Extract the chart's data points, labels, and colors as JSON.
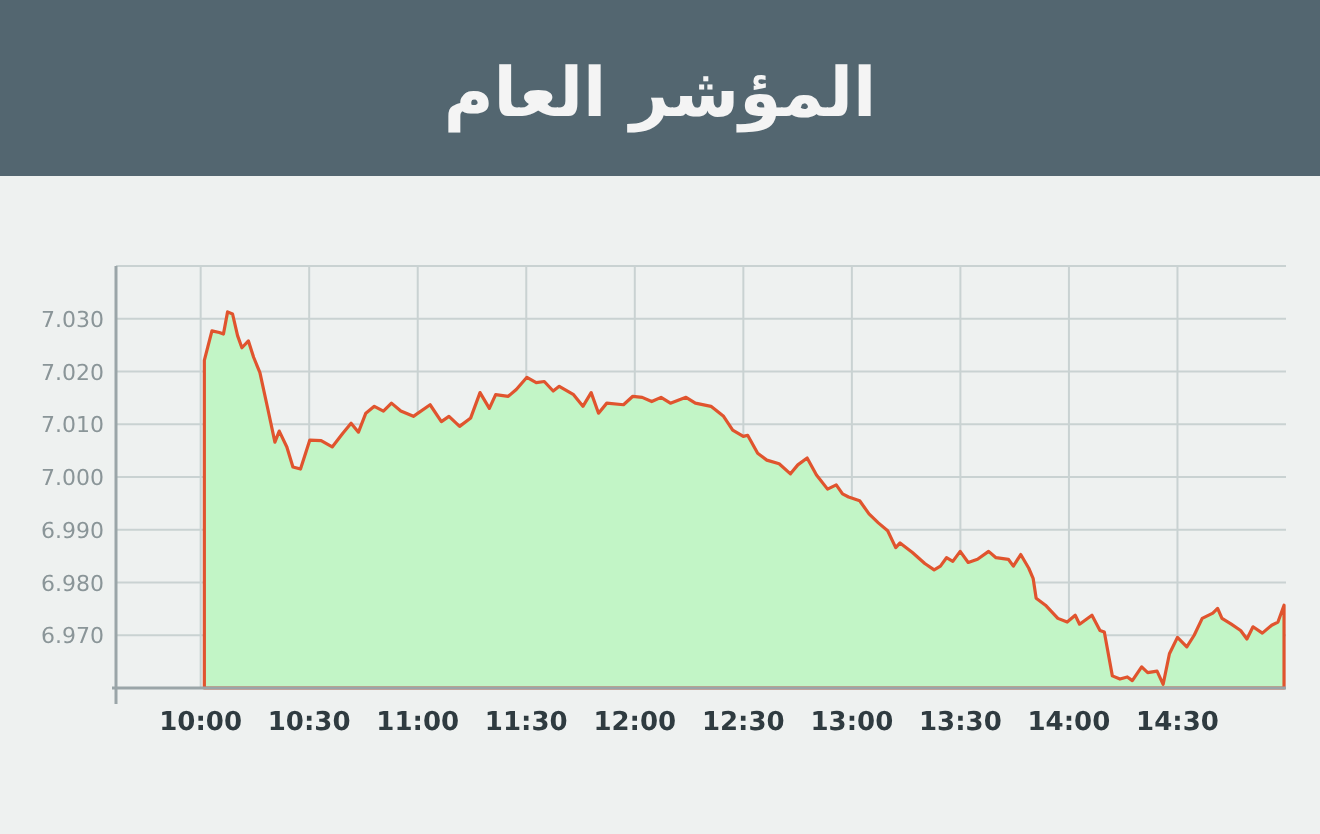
{
  "chart_data": {
    "type": "area",
    "title": "المؤشر العام",
    "x": [
      10.017,
      10.052,
      10.086,
      10.105,
      10.124,
      10.147,
      10.17,
      10.19,
      10.22,
      10.244,
      10.273,
      10.31,
      10.342,
      10.362,
      10.397,
      10.425,
      10.46,
      10.503,
      10.555,
      10.606,
      10.655,
      10.693,
      10.727,
      10.761,
      10.8,
      10.842,
      10.879,
      10.922,
      10.98,
      11.057,
      11.109,
      11.144,
      11.193,
      11.244,
      11.287,
      11.33,
      11.359,
      11.417,
      11.454,
      11.503,
      11.546,
      11.583,
      11.624,
      11.652,
      11.718,
      11.761,
      11.799,
      11.833,
      11.871,
      11.948,
      11.991,
      12.034,
      12.078,
      12.121,
      12.164,
      12.236,
      12.279,
      12.351,
      12.409,
      12.451,
      12.5,
      12.52,
      12.566,
      12.608,
      12.665,
      12.717,
      12.751,
      12.794,
      12.837,
      12.888,
      12.928,
      12.957,
      12.985,
      13.036,
      13.079,
      13.122,
      13.165,
      13.202,
      13.222,
      13.279,
      13.336,
      13.379,
      13.408,
      13.436,
      13.465,
      13.499,
      13.536,
      13.579,
      13.63,
      13.664,
      13.721,
      13.744,
      13.778,
      13.815,
      13.835,
      13.849,
      13.892,
      13.949,
      13.992,
      14.029,
      14.049,
      14.106,
      14.143,
      14.163,
      14.2,
      14.235,
      14.269,
      14.292,
      14.335,
      14.363,
      14.406,
      14.434,
      14.463,
      14.5,
      14.543,
      14.577,
      14.614,
      14.663,
      14.685,
      14.705,
      14.748,
      14.791,
      14.82,
      14.848,
      14.891,
      14.934,
      14.963,
      14.991
    ],
    "series": [
      {
        "color": "#c2f5c6",
        "values": [
          7022.1,
          7027.7,
          7027.4,
          7027.1,
          7031.3,
          7030.9,
          7026.8,
          7024.5,
          7025.8,
          7022.7,
          7019.8,
          7012.8,
          7006.6,
          7008.7,
          7005.7,
          7001.9,
          7001.5,
          7007.0,
          7006.9,
          7005.7,
          7008.3,
          7010.2,
          7008.5,
          7012.1,
          7013.4,
          7012.5,
          7014.0,
          7012.5,
          7011.5,
          7013.7,
          7010.5,
          7011.5,
          7009.6,
          7011.2,
          7016.0,
          7013.0,
          7015.6,
          7015.3,
          7016.6,
          7018.9,
          7017.9,
          7018.1,
          7016.3,
          7017.2,
          7015.6,
          7013.4,
          7016.0,
          7012.1,
          7014.0,
          7013.7,
          7015.3,
          7015.1,
          7014.3,
          7015.1,
          7014.0,
          7015.1,
          7014.0,
          7013.4,
          7011.5,
          7008.9,
          7007.7,
          7007.9,
          7004.5,
          7003.2,
          7002.5,
          7000.6,
          7002.3,
          7003.6,
          7000.4,
          6997.7,
          6998.5,
          6996.8,
          6996.2,
          6995.5,
          6993.0,
          6991.3,
          6989.8,
          6986.6,
          6987.5,
          6985.7,
          6983.6,
          6982.4,
          6983.1,
          6984.7,
          6984.0,
          6985.9,
          6983.8,
          6984.4,
          6985.9,
          6984.7,
          6984.4,
          6983.1,
          6985.3,
          6982.7,
          6980.8,
          6977.0,
          6975.7,
          6973.2,
          6972.5,
          6973.8,
          6972.1,
          6973.8,
          6970.9,
          6970.6,
          6962.3,
          6961.7,
          6962.1,
          6961.4,
          6964.0,
          6962.9,
          6963.2,
          6960.7,
          6966.5,
          6969.6,
          6967.8,
          6970.0,
          6973.2,
          6974.2,
          6975.1,
          6973.2,
          6972.1,
          6970.9,
          6969.3,
          6971.6,
          6970.4,
          6971.9,
          6972.5,
          6975.7
        ]
      }
    ],
    "xlim": [
      9.61,
      15.0
    ],
    "ylim": [
      6960,
      7040
    ],
    "xticks": [
      {
        "value": 10,
        "label": "10:00"
      },
      {
        "value": 10.5,
        "label": "10:30"
      },
      {
        "value": 11,
        "label": "11:00"
      },
      {
        "value": 11.5,
        "label": "11:30"
      },
      {
        "value": 12,
        "label": "12:00"
      },
      {
        "value": 12.5,
        "label": "12:30"
      },
      {
        "value": 13,
        "label": "13:00"
      },
      {
        "value": 13.5,
        "label": "13:30"
      },
      {
        "value": 14,
        "label": "14:00"
      },
      {
        "value": 14.5,
        "label": "14:30"
      }
    ],
    "yticks": [
      {
        "value": 6970,
        "label": "6.970"
      },
      {
        "value": 6980,
        "label": "6.980"
      },
      {
        "value": 6990,
        "label": "6.990"
      },
      {
        "value": 7000,
        "label": "7.000"
      },
      {
        "value": 7010,
        "label": "7.010"
      },
      {
        "value": 7020,
        "label": "7.020"
      },
      {
        "value": 7030,
        "label": "7.030"
      },
      {
        "value": 7040,
        "label": null
      }
    ],
    "grid": true
  }
}
